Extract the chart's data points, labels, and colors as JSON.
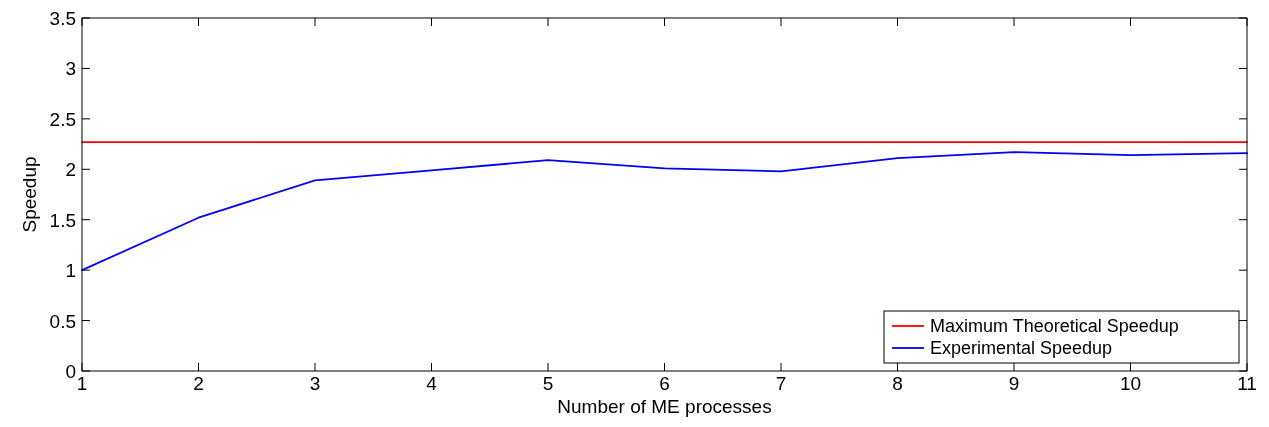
{
  "chart_data": {
    "type": "line",
    "xlabel": "Number of ME processes",
    "ylabel": "Speedup",
    "xlim": [
      1,
      11
    ],
    "xticks": [
      1,
      2,
      3,
      4,
      5,
      6,
      7,
      8,
      9,
      10,
      11
    ],
    "ylim": [
      0,
      3.5
    ],
    "yticks": [
      0,
      0.5,
      1,
      1.5,
      2,
      2.5,
      3,
      3.5
    ],
    "legend": "bottom right",
    "grid": false,
    "series": [
      {
        "name": "Maximum Theoretical Speedup",
        "color": "#ff0000",
        "x": [
          1,
          11
        ],
        "values": [
          2.27,
          2.27
        ]
      },
      {
        "name": "Experimental Speedup",
        "color": "#0000ff",
        "x": [
          1,
          2,
          3,
          4,
          5,
          6,
          7,
          8,
          9,
          10,
          11
        ],
        "values": [
          1.0,
          1.52,
          1.89,
          1.99,
          2.09,
          2.01,
          1.98,
          2.11,
          2.17,
          2.14,
          2.16
        ]
      }
    ]
  }
}
